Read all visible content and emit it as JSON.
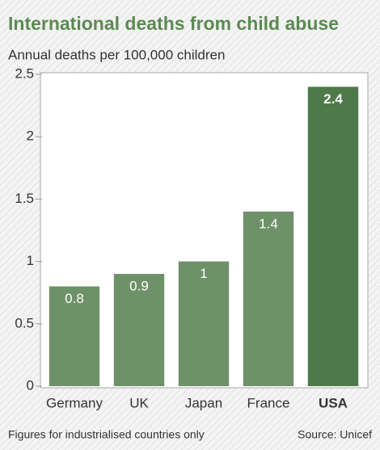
{
  "chart_data": {
    "type": "bar",
    "title": "International deaths from child abuse",
    "subtitle": "Annual deaths per 100,000 children",
    "categories": [
      "Germany",
      "UK",
      "Japan",
      "France",
      "USA"
    ],
    "values": [
      0.8,
      0.9,
      1,
      1.4,
      2.4
    ],
    "colors": [
      "#6f9169",
      "#6f9169",
      "#6f9169",
      "#6f9169",
      "#4e7a49"
    ],
    "highlight_color": "#4e7a49",
    "ylim": [
      0,
      2.5
    ],
    "yticks": [
      0,
      {
        "value": 0.5,
        "label": "0.5"
      },
      1,
      {
        "value": 1.5,
        "label": "1.5"
      },
      2,
      {
        "value": 2.5,
        "label": "2.5"
      }
    ],
    "grid": false,
    "footnote": "Figures for industrialised countries only",
    "source": "Source: Unicef"
  }
}
